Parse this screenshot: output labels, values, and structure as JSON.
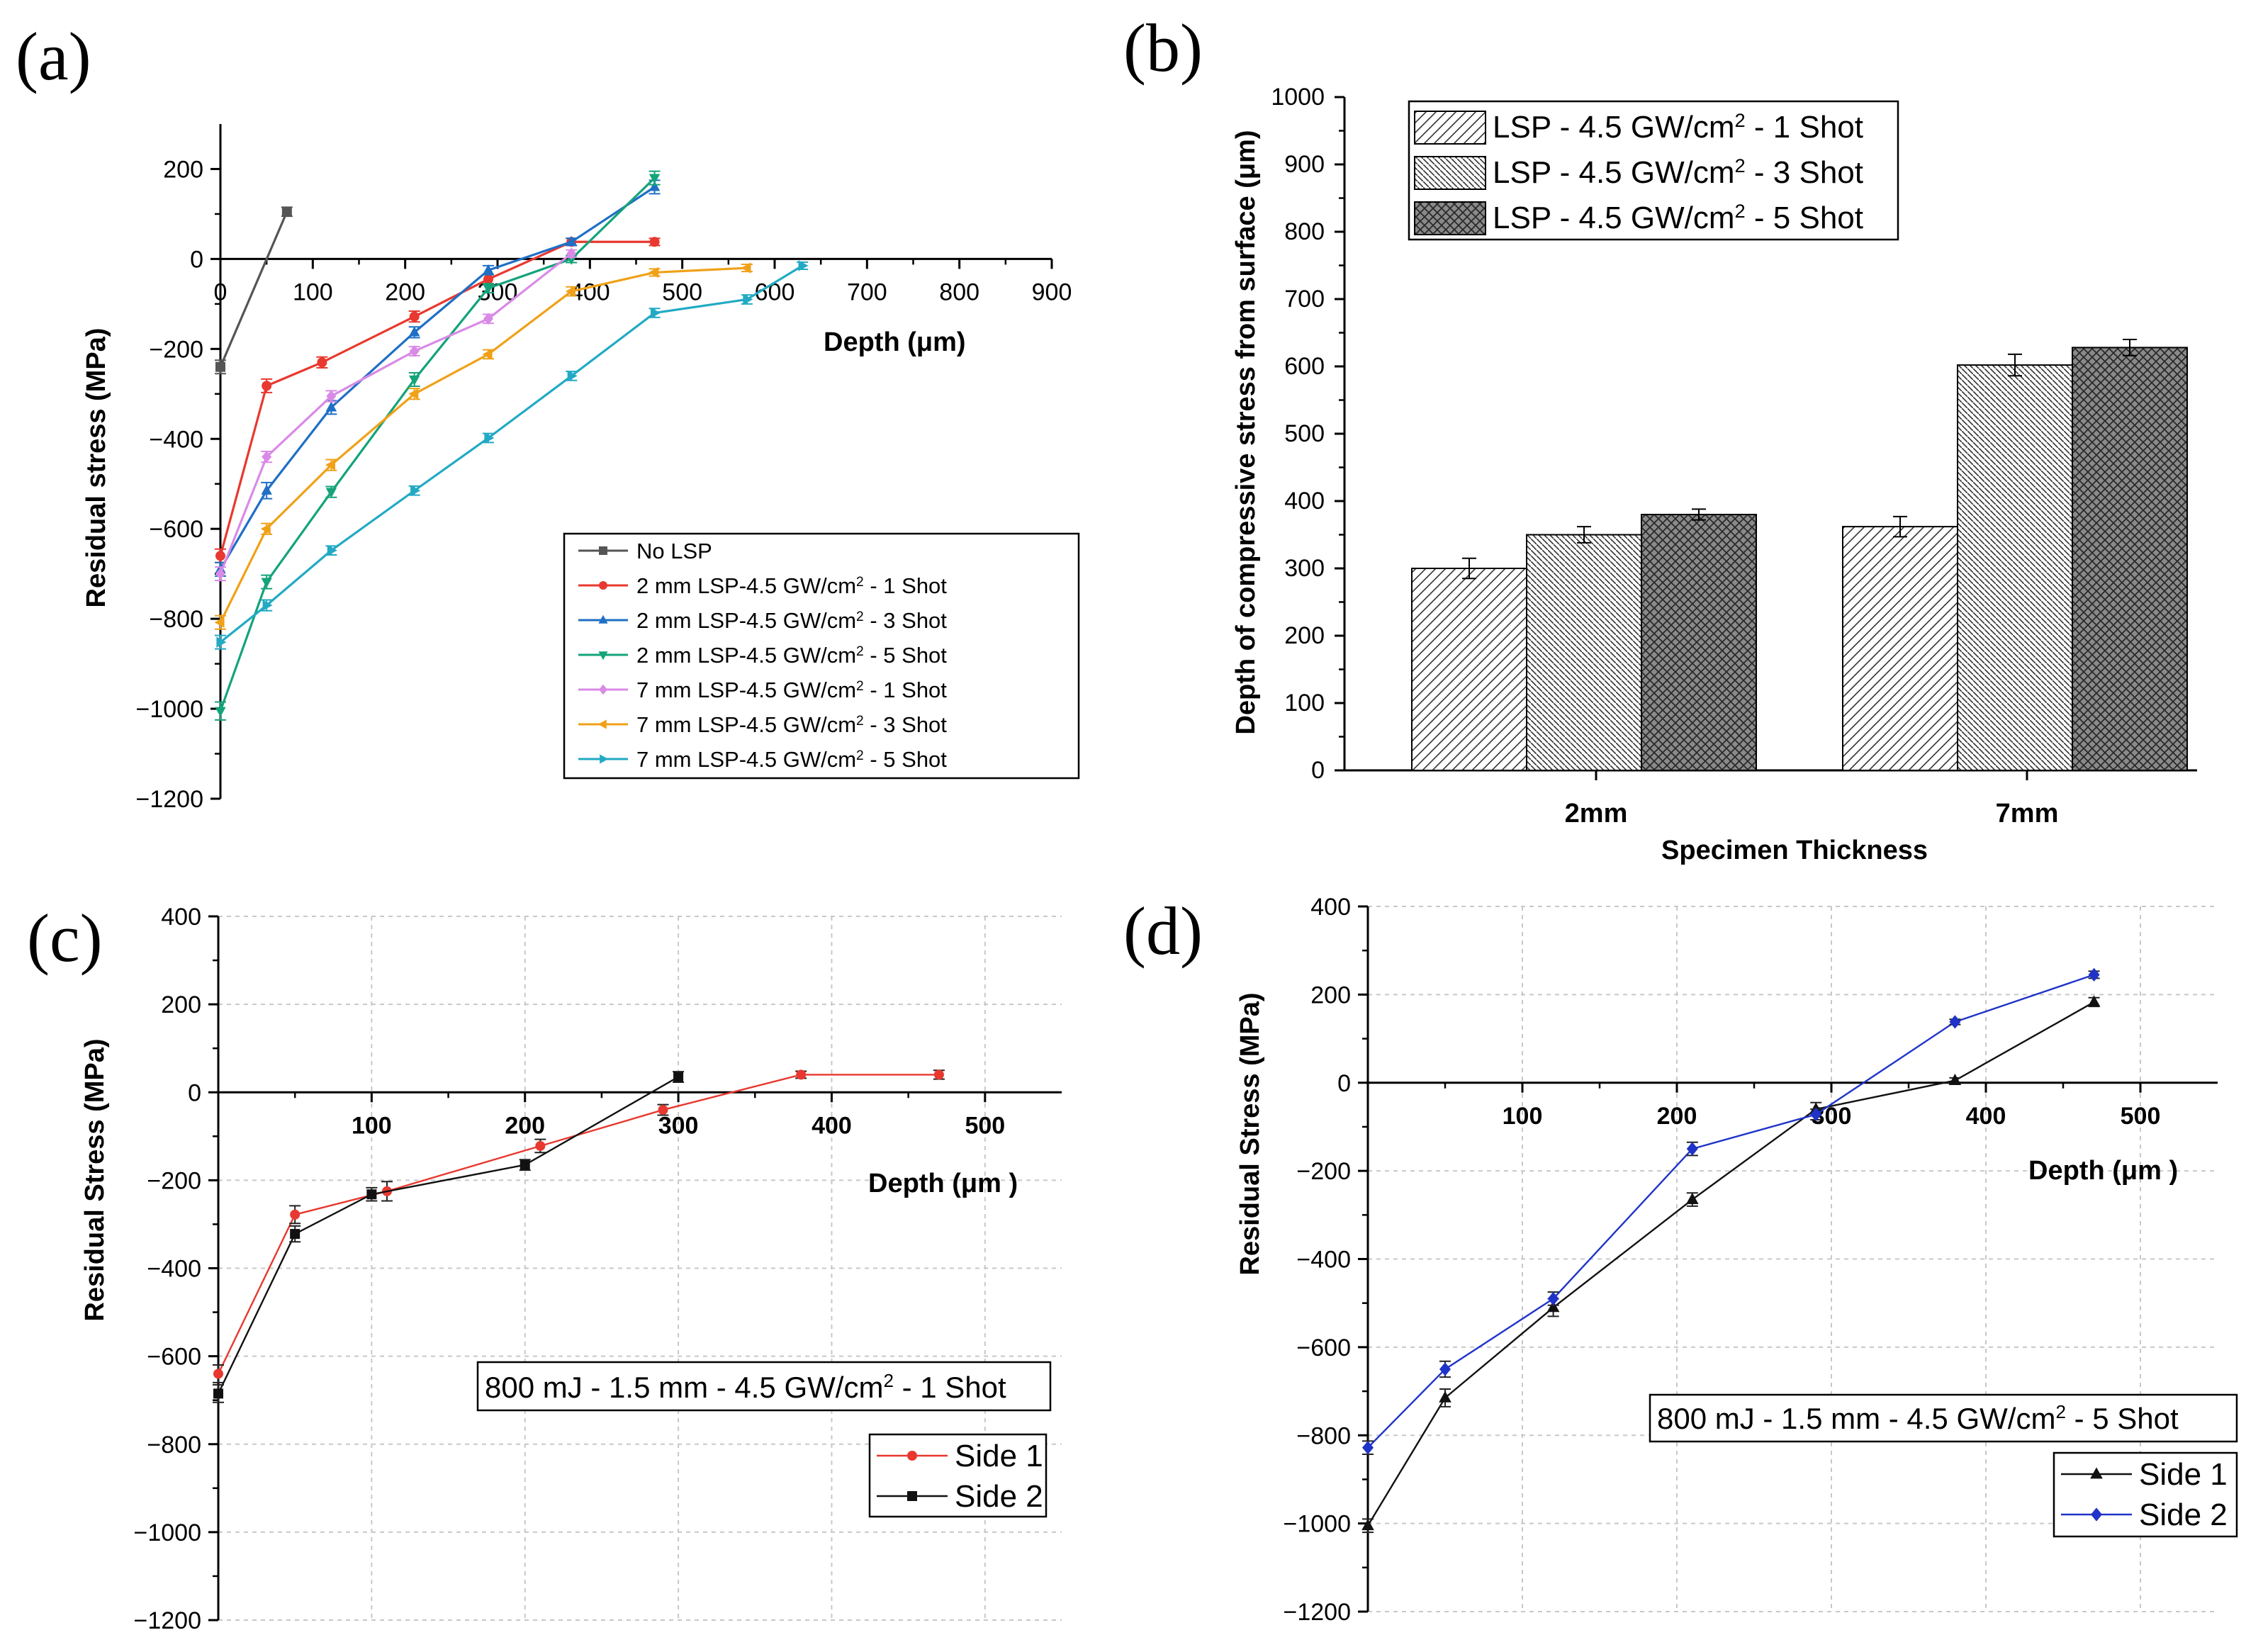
{
  "colors": {
    "no_lsp": "#555555",
    "red": "#e8382f",
    "blue": "#1f6fc5",
    "green": "#14a37a",
    "violet": "#d98ae6",
    "orange": "#f0a118",
    "cyan": "#22aac4",
    "black": "#111111",
    "navy": "#1f33c8"
  },
  "chart_data": [
    {
      "panel": "(a)",
      "type": "line",
      "xlabel": "Depth  (μm)",
      "ylabel": "Residual stress (MPa)",
      "xlim": [
        0,
        900
      ],
      "ylim": [
        -1200,
        300
      ],
      "x_ticks": [
        "0",
        "100",
        "200",
        "300",
        "400",
        "500",
        "600",
        "700",
        "800",
        "900"
      ],
      "y_ticks": [
        "200",
        "0",
        "−200",
        "−400",
        "−600",
        "−800",
        "−1000",
        "−1200"
      ],
      "legend_position": "bottom-right",
      "series": [
        {
          "name": "No LSP",
          "label_pre": "No LSP",
          "sup": "",
          "label_post": "",
          "color_key": "no_lsp",
          "marker": "square",
          "points": [
            [
              0,
              -240
            ],
            [
              72,
              105
            ]
          ],
          "err": [
            15,
            10
          ]
        },
        {
          "name": "2 mm LSP-4.5 GW/cm2 - 1 Shot",
          "label_pre": "2 mm LSP-4.5 GW/cm",
          "sup": "2",
          "label_post": " - 1 Shot",
          "color_key": "red",
          "marker": "circle",
          "points": [
            [
              0,
              -660
            ],
            [
              50,
              -282
            ],
            [
              110,
              -230
            ],
            [
              210,
              -128
            ],
            [
              290,
              -45
            ],
            [
              380,
              38
            ],
            [
              470,
              38
            ]
          ],
          "err": [
            15,
            15,
            12,
            12,
            10,
            8,
            8
          ]
        },
        {
          "name": "2 mm LSP-4.5 GW/cm2 - 3 Shot",
          "label_pre": "2 mm LSP-4.5 GW/cm",
          "sup": "2",
          "label_post": " - 3 Shot",
          "color_key": "blue",
          "marker": "triangle-up",
          "points": [
            [
              0,
              -690
            ],
            [
              50,
              -515
            ],
            [
              120,
              -330
            ],
            [
              210,
              -163
            ],
            [
              290,
              -25
            ],
            [
              380,
              38
            ],
            [
              470,
              160
            ]
          ],
          "err": [
            15,
            18,
            15,
            12,
            10,
            8,
            15
          ]
        },
        {
          "name": "2 mm LSP-4.5 GW/cm2 - 5 Shot",
          "label_pre": "2 mm LSP-4.5 GW/cm",
          "sup": "2",
          "label_post": " - 5 Shot",
          "color_key": "green",
          "marker": "triangle-down",
          "points": [
            [
              0,
              -1005
            ],
            [
              50,
              -718
            ],
            [
              120,
              -518
            ],
            [
              210,
              -268
            ],
            [
              290,
              -65
            ],
            [
              380,
              0
            ],
            [
              470,
              180
            ]
          ],
          "err": [
            20,
            15,
            12,
            15,
            10,
            8,
            15
          ]
        },
        {
          "name": "7 mm LSP-4.5 GW/cm2 - 1 Shot",
          "label_pre": "7 mm LSP-4.5 GW/cm",
          "sup": "2",
          "label_post": " - 1 Shot",
          "color_key": "violet",
          "marker": "diamond",
          "points": [
            [
              0,
              -700
            ],
            [
              50,
              -440
            ],
            [
              120,
              -305
            ],
            [
              210,
              -205
            ],
            [
              290,
              -133
            ],
            [
              380,
              12
            ]
          ],
          "err": [
            15,
            12,
            12,
            10,
            10,
            8
          ]
        },
        {
          "name": "7 mm LSP-4.5 GW/cm2 - 3 Shot",
          "label_pre": "7 mm LSP-4.5 GW/cm",
          "sup": "2",
          "label_post": " - 3 Shot",
          "color_key": "orange",
          "marker": "triangle-left",
          "points": [
            [
              0,
              -808
            ],
            [
              50,
              -600
            ],
            [
              120,
              -458
            ],
            [
              210,
              -300
            ],
            [
              290,
              -212
            ],
            [
              380,
              -72
            ],
            [
              470,
              -30
            ],
            [
              570,
              -20
            ]
          ],
          "err": [
            15,
            12,
            12,
            12,
            10,
            10,
            8,
            8
          ]
        },
        {
          "name": "7 mm LSP-4.5 GW/cm2 - 5 Shot",
          "label_pre": "7 mm LSP-4.5 GW/cm",
          "sup": "2",
          "label_post": " - 5 Shot",
          "color_key": "cyan",
          "marker": "triangle-right",
          "points": [
            [
              0,
              -852
            ],
            [
              50,
              -770
            ],
            [
              120,
              -648
            ],
            [
              210,
              -515
            ],
            [
              290,
              -398
            ],
            [
              380,
              -260
            ],
            [
              470,
              -120
            ],
            [
              570,
              -90
            ],
            [
              630,
              -15
            ]
          ],
          "err": [
            15,
            12,
            10,
            10,
            10,
            10,
            10,
            10,
            8
          ]
        }
      ]
    },
    {
      "panel": "(b)",
      "type": "bar",
      "xlabel": "Specimen Thickness",
      "ylabel": "Depth of compressive stress from surface (μm)",
      "ylim": [
        0,
        1000
      ],
      "y_ticks": [
        "0",
        "100",
        "200",
        "300",
        "400",
        "500",
        "600",
        "700",
        "800",
        "900",
        "1000"
      ],
      "categories": [
        "2mm",
        "7mm"
      ],
      "legend_position": "top-left",
      "series": [
        {
          "name": "LSP - 4.5 GW/cm2 - 1 Shot",
          "label_pre": "LSP - 4.5 GW/cm",
          "sup": "2",
          "label_post": " - 1 Shot",
          "pattern": "p-sparse",
          "values": [
            300,
            362
          ],
          "err": [
            15,
            15
          ]
        },
        {
          "name": "LSP - 4.5 GW/cm2 - 3 Shot",
          "label_pre": "LSP - 4.5 GW/cm",
          "sup": "2",
          "label_post": " - 3 Shot",
          "pattern": "p-dense",
          "values": [
            350,
            602
          ],
          "err": [
            12,
            16
          ]
        },
        {
          "name": "LSP - 4.5 GW/cm2 - 5 Shot",
          "label_pre": "LSP - 4.5 GW/cm",
          "sup": "2",
          "label_post": " - 5 Shot",
          "pattern": "p-cross",
          "values": [
            380,
            628
          ],
          "err": [
            8,
            12
          ]
        }
      ]
    },
    {
      "panel": "(c)",
      "type": "line",
      "xlabel": "Depth (μm )",
      "ylabel": "Residual Stress (MPa)",
      "xlim": [
        0,
        550
      ],
      "ylim": [
        -1200,
        400
      ],
      "x_ticks": [
        "100",
        "200",
        "300",
        "400",
        "500"
      ],
      "y_ticks": [
        "400",
        "200",
        "0",
        "−200",
        "−400",
        "−600",
        "−800",
        "−1000",
        "−1200"
      ],
      "annotation": {
        "pre": "800 mJ - 1.5 mm - 4.5 GW/cm",
        "sup": "2",
        "post": " - 1 Shot"
      },
      "legend_position": "bottom-right",
      "series": [
        {
          "name": "Side 1",
          "label_pre": "Side 1",
          "sup": "",
          "label_post": "",
          "color_key": "red",
          "marker": "circle",
          "points": [
            [
              0,
              -640
            ],
            [
              50,
              -278
            ],
            [
              110,
              -225
            ],
            [
              210,
              -122
            ],
            [
              290,
              -40
            ],
            [
              380,
              40
            ],
            [
              470,
              40
            ]
          ],
          "err": [
            20,
            20,
            22,
            15,
            12,
            8,
            10
          ]
        },
        {
          "name": "Side 2",
          "label_pre": "Side 2",
          "sup": "",
          "label_post": "",
          "color_key": "black",
          "marker": "square",
          "points": [
            [
              0,
              -685
            ],
            [
              50,
              -322
            ],
            [
              100,
              -232
            ],
            [
              200,
              -165
            ],
            [
              300,
              35
            ]
          ],
          "err": [
            20,
            18,
            15,
            12,
            12
          ]
        }
      ]
    },
    {
      "panel": "(d)",
      "type": "line",
      "xlabel": "Depth (μm )",
      "ylabel": "Residual Stress (MPa)",
      "xlim": [
        0,
        550
      ],
      "ylim": [
        -1200,
        400
      ],
      "x_ticks": [
        "100",
        "200",
        "300",
        "400",
        "500"
      ],
      "y_ticks": [
        "400",
        "200",
        "0",
        "−200",
        "−400",
        "−600",
        "−800",
        "−1000",
        "−1200"
      ],
      "annotation": {
        "pre": "800 mJ - 1.5 mm - 4.5 GW/cm",
        "sup": "2",
        "post": " - 5 Shot"
      },
      "legend_position": "bottom-right",
      "series": [
        {
          "name": "Side 1",
          "label_pre": "Side 1",
          "sup": "",
          "label_post": "",
          "color_key": "black",
          "marker": "triangle-up",
          "points": [
            [
              0,
              -1005
            ],
            [
              50,
              -715
            ],
            [
              120,
              -510
            ],
            [
              210,
              -265
            ],
            [
              290,
              -60
            ],
            [
              380,
              5
            ],
            [
              470,
              183
            ]
          ],
          "err": [
            15,
            20,
            20,
            15,
            15,
            6,
            10
          ]
        },
        {
          "name": "Side 2",
          "label_pre": "Side 2",
          "sup": "",
          "label_post": "",
          "color_key": "navy",
          "marker": "diamond",
          "points": [
            [
              0,
              -828
            ],
            [
              50,
              -650
            ],
            [
              120,
              -490
            ],
            [
              210,
              -150
            ],
            [
              290,
              -72
            ],
            [
              380,
              138
            ],
            [
              470,
              245
            ]
          ],
          "err": [
            15,
            18,
            15,
            15,
            12,
            6,
            8
          ]
        }
      ]
    }
  ]
}
